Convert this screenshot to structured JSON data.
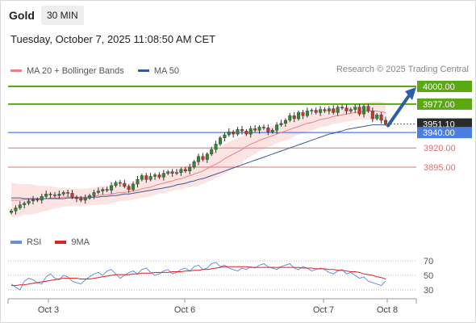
{
  "header": {
    "symbol": "Gold",
    "timeframe": "30 MIN",
    "datetime": "Tuesday, October 7, 2025 11:08:50 AM CET"
  },
  "legend": {
    "ma20": "MA 20 + Bollinger Bands",
    "ma50": "MA 50",
    "credit": "Research © 2025 Trading Central"
  },
  "rsi_legend": {
    "rsi": "RSI",
    "ma9": "9MA"
  },
  "colors": {
    "resistance": "#5aa812",
    "pivot": "#4a7fe0",
    "support": "#e07070",
    "current": "#2a2a2a",
    "arrow": "#2a5ea8",
    "bollinger_fill": "#fde4e4",
    "ma20": "#f08080",
    "ma50": "#3a5a9a",
    "candle_up": "#2e8b2e",
    "candle_down": "#c0392b",
    "rsi": "#6a8fd8",
    "rsi_ma": "#dd2222"
  },
  "chart_data": [
    {
      "type": "candlestick",
      "x_ticks": [
        "Oct 3",
        "Oct 6",
        "Oct 7",
        "Oct 8"
      ],
      "ylim": [
        3830,
        4010
      ],
      "levels": [
        {
          "value": 4000.0,
          "label": "4000.00",
          "kind": "resistance"
        },
        {
          "value": 3977.0,
          "label": "3977.00",
          "kind": "resistance"
        },
        {
          "value": 3951.1,
          "label": "3951.10",
          "kind": "current"
        },
        {
          "value": 3940.0,
          "label": "3940.00",
          "kind": "pivot"
        },
        {
          "value": 3920.0,
          "label": "3920.00",
          "kind": "support"
        },
        {
          "value": 3895.0,
          "label": "3895.00",
          "kind": "support"
        }
      ],
      "close": [
        3838,
        3842,
        3846,
        3848,
        3851,
        3853,
        3852,
        3857,
        3860,
        3859,
        3858,
        3860,
        3862,
        3861,
        3856,
        3854,
        3852,
        3855,
        3858,
        3862,
        3864,
        3866,
        3865,
        3871,
        3875,
        3874,
        3870,
        3866,
        3873,
        3879,
        3884,
        3879,
        3883,
        3885,
        3882,
        3887,
        3889,
        3887,
        3888,
        3892,
        3890,
        3895,
        3902,
        3909,
        3905,
        3912,
        3918,
        3925,
        3933,
        3937,
        3941,
        3938,
        3944,
        3942,
        3938,
        3945,
        3943,
        3947,
        3946,
        3941,
        3943,
        3950,
        3952,
        3956,
        3962,
        3958,
        3966,
        3962,
        3968,
        3969,
        3966,
        3970,
        3968,
        3971,
        3966,
        3973,
        3972,
        3968,
        3970,
        3973,
        3964,
        3974,
        3968,
        3958,
        3963,
        3956,
        3951
      ],
      "ma20": [
        3852,
        3852,
        3852,
        3853,
        3853,
        3853,
        3853,
        3854,
        3854,
        3855,
        3855,
        3855,
        3856,
        3856,
        3856,
        3856,
        3856,
        3856,
        3857,
        3857,
        3858,
        3859,
        3859,
        3860,
        3861,
        3862,
        3862,
        3863,
        3864,
        3865,
        3867,
        3868,
        3869,
        3871,
        3873,
        3874,
        3876,
        3877,
        3879,
        3880,
        3882,
        3884,
        3886,
        3888,
        3890,
        3893,
        3896,
        3899,
        3902,
        3906,
        3909,
        3912,
        3915,
        3918,
        3922,
        3925,
        3927,
        3930,
        3932,
        3934,
        3936,
        3938,
        3940,
        3942,
        3944,
        3946,
        3948,
        3950,
        3952,
        3953,
        3955,
        3957,
        3958,
        3959,
        3961,
        3962,
        3963,
        3964,
        3965,
        3966,
        3967,
        3968,
        3968,
        3968,
        3968,
        3967,
        3966
      ],
      "ma50": [
        3855,
        3855,
        3855,
        3854,
        3854,
        3854,
        3854,
        3854,
        3854,
        3854,
        3854,
        3854,
        3854,
        3855,
        3855,
        3855,
        3855,
        3855,
        3855,
        3856,
        3856,
        3857,
        3857,
        3858,
        3858,
        3859,
        3860,
        3860,
        3861,
        3862,
        3863,
        3864,
        3865,
        3866,
        3867,
        3868,
        3869,
        3870,
        3872,
        3873,
        3874,
        3876,
        3877,
        3879,
        3880,
        3882,
        3884,
        3886,
        3888,
        3890,
        3892,
        3894,
        3896,
        3898,
        3900,
        3902,
        3904,
        3906,
        3908,
        3910,
        3912,
        3914,
        3916,
        3918,
        3920,
        3922,
        3924,
        3926,
        3928,
        3930,
        3932,
        3934,
        3936,
        3938,
        3939,
        3941,
        3942,
        3944,
        3945,
        3946,
        3947,
        3948,
        3949,
        3950,
        3950,
        3950,
        3950
      ],
      "projection": {
        "from": 3951.1,
        "to": 4000.0
      }
    },
    {
      "type": "line",
      "name": "RSI",
      "ylim": [
        20,
        80
      ],
      "y_ticks": [
        70,
        50,
        30
      ],
      "rsi": [
        38,
        34,
        30,
        42,
        46,
        44,
        40,
        38,
        48,
        52,
        46,
        44,
        50,
        48,
        42,
        40,
        38,
        44,
        48,
        52,
        54,
        50,
        56,
        58,
        52,
        46,
        50,
        54,
        56,
        52,
        58,
        60,
        54,
        50,
        52,
        56,
        58,
        52,
        54,
        58,
        60,
        56,
        62,
        64,
        58,
        60,
        66,
        68,
        62,
        64,
        60,
        58,
        56,
        60,
        58,
        62,
        60,
        64,
        66,
        62,
        60,
        58,
        62,
        64,
        66,
        60,
        58,
        62,
        60,
        56,
        58,
        60,
        58,
        54,
        52,
        56,
        58,
        52,
        54,
        50,
        46,
        48,
        42,
        40,
        38,
        36,
        42
      ],
      "ma9": [
        36,
        36,
        37,
        37,
        38,
        39,
        40,
        41,
        42,
        43,
        44,
        45,
        46,
        46,
        46,
        46,
        45,
        45,
        45,
        46,
        47,
        48,
        49,
        50,
        51,
        51,
        51,
        51,
        52,
        52,
        53,
        53,
        53,
        54,
        54,
        54,
        54,
        55,
        55,
        55,
        56,
        56,
        57,
        57,
        58,
        58,
        59,
        60,
        61,
        62,
        62,
        62,
        62,
        62,
        62,
        61,
        61,
        61,
        61,
        61,
        61,
        61,
        61,
        61,
        61,
        61,
        61,
        60,
        60,
        60,
        59,
        59,
        59,
        58,
        58,
        57,
        57,
        56,
        55,
        55,
        54,
        52,
        51,
        50,
        48,
        47,
        45
      ]
    }
  ]
}
